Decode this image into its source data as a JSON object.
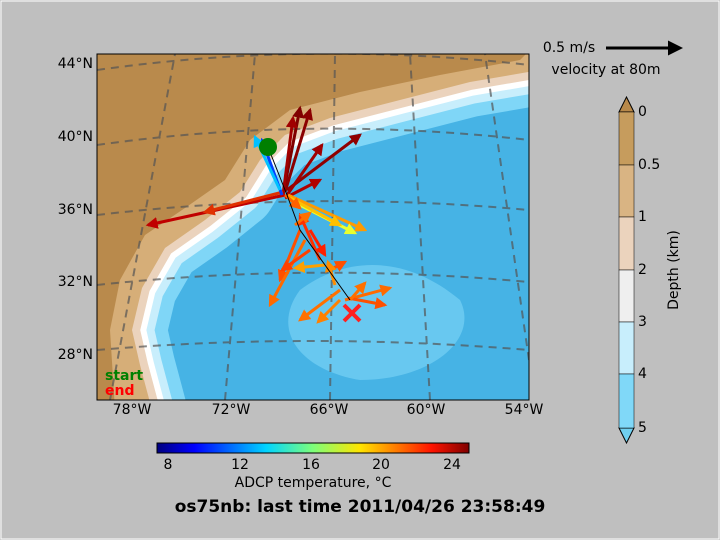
{
  "title": "os75nb: last time 2011/04/26 23:58:49",
  "map": {
    "lat_labels": [
      "44°N",
      "40°N",
      "36°N",
      "32°N",
      "28°N"
    ],
    "lon_labels": [
      "78°W",
      "72°W",
      "66°W",
      "60°W",
      "54°W"
    ],
    "legend": {
      "start": "start",
      "end": "end"
    }
  },
  "scale": {
    "speed": "0.5 m/s",
    "label": "velocity at 80m"
  },
  "depth_colorbar": {
    "label": "Depth (km)",
    "ticks": [
      "0",
      "0.5",
      "1",
      "2",
      "3",
      "4",
      "5"
    ]
  },
  "temperature_colorbar": {
    "label": "ADCP temperature, °C",
    "ticks": [
      "8",
      "12",
      "16",
      "20",
      "24"
    ]
  }
}
